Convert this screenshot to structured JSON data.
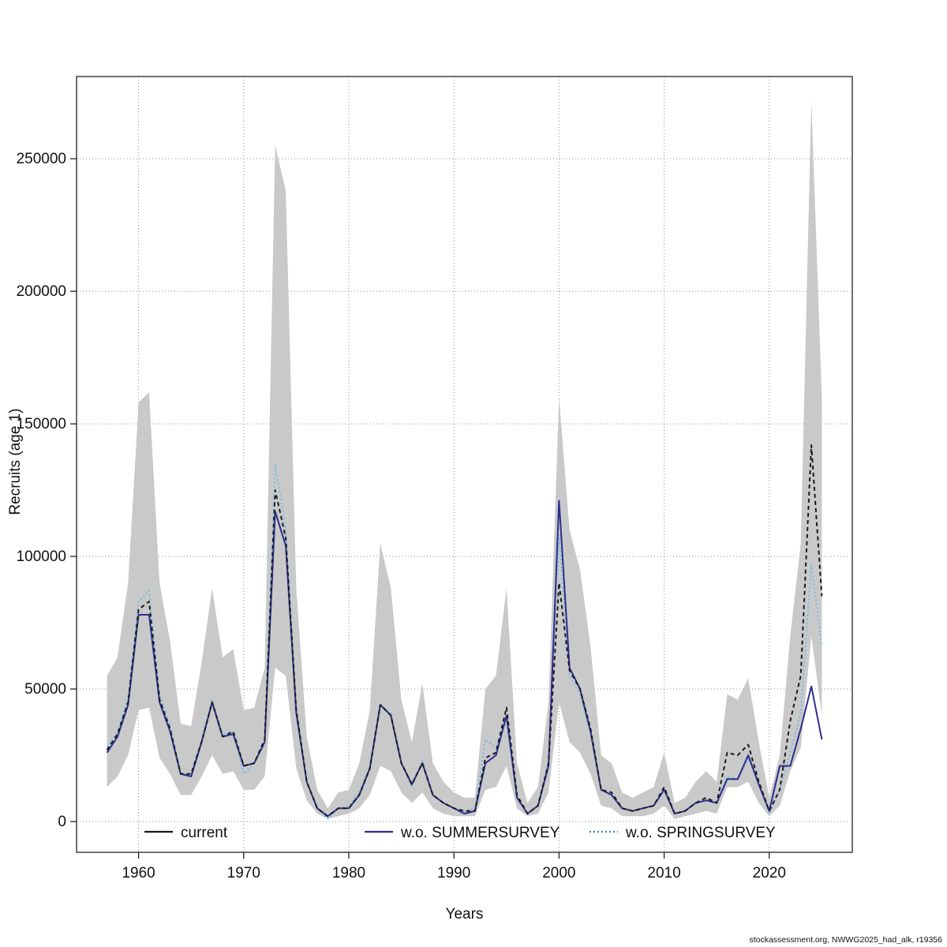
{
  "footer": {
    "text": "stockassessment.org, NWWG2025_had_alk, r19356"
  },
  "chart_data": {
    "type": "line",
    "title": "",
    "xlabel": "Years",
    "ylabel": "Recruits (age 1)",
    "xlim": [
      1954.1,
      2027.9
    ],
    "ylim": [
      -11600,
      281000
    ],
    "xticks": [
      1960,
      1970,
      1980,
      1990,
      2000,
      2010,
      2020
    ],
    "yticks": [
      0,
      50000,
      100000,
      150000,
      200000,
      250000
    ],
    "grid": "dotted",
    "legend_position": "bottom-inside",
    "years": [
      1957,
      1958,
      1959,
      1960,
      1961,
      1962,
      1963,
      1964,
      1965,
      1966,
      1967,
      1968,
      1969,
      1970,
      1971,
      1972,
      1973,
      1974,
      1975,
      1976,
      1977,
      1978,
      1979,
      1980,
      1981,
      1982,
      1983,
      1984,
      1985,
      1986,
      1987,
      1988,
      1989,
      1990,
      1991,
      1992,
      1993,
      1994,
      1995,
      1996,
      1997,
      1998,
      1999,
      2000,
      2001,
      2002,
      2003,
      2004,
      2005,
      2006,
      2007,
      2008,
      2009,
      2010,
      2011,
      2012,
      2013,
      2014,
      2015,
      2016,
      2017,
      2018,
      2019,
      2020,
      2021,
      2022,
      2023,
      2024,
      2025
    ],
    "band": {
      "name": "current confidence interval",
      "color": "#c9c9c9",
      "lower": [
        13000,
        17000,
        25000,
        42000,
        43000,
        24000,
        18000,
        10000,
        10000,
        17000,
        25000,
        18000,
        19000,
        12000,
        12000,
        17000,
        58000,
        55000,
        20000,
        8000,
        3000,
        1000,
        2000,
        3000,
        5000,
        10000,
        21000,
        19000,
        11000,
        7000,
        11000,
        5000,
        3000,
        2000,
        2000,
        2000,
        12000,
        13000,
        21000,
        5000,
        2000,
        3000,
        11000,
        45000,
        30000,
        26000,
        18000,
        6000,
        5000,
        2000,
        2000,
        2000,
        3000,
        6000,
        1000,
        2000,
        3000,
        4000,
        3000,
        13000,
        13000,
        15000,
        7000,
        2000,
        6000,
        19000,
        28000,
        70000,
        40000
      ],
      "upper": [
        55000,
        62000,
        90000,
        158000,
        162000,
        90000,
        68000,
        37000,
        36000,
        60000,
        88000,
        62000,
        65000,
        42000,
        43000,
        58000,
        255000,
        238000,
        88000,
        32000,
        12000,
        5000,
        11000,
        12000,
        22000,
        42000,
        105000,
        88000,
        46000,
        30000,
        52000,
        22000,
        15000,
        11000,
        9000,
        9000,
        50000,
        55000,
        88000,
        22000,
        7000,
        13000,
        45000,
        160000,
        110000,
        95000,
        66000,
        25000,
        22000,
        11000,
        9000,
        11000,
        13000,
        26000,
        7000,
        9000,
        15000,
        19000,
        15000,
        48000,
        46000,
        54000,
        30000,
        9000,
        25000,
        70000,
        105000,
        272000,
        160000
      ]
    },
    "series": [
      {
        "name": "current",
        "color": "#1a1a1a",
        "dash": "5 4",
        "width": 2,
        "values": [
          27000,
          33000,
          45000,
          80000,
          83000,
          46000,
          35000,
          18000,
          18000,
          30000,
          45000,
          32000,
          34000,
          21000,
          22000,
          31000,
          125000,
          107000,
          42000,
          15000,
          5000,
          2000,
          5000,
          5000,
          10000,
          20000,
          44000,
          40000,
          22000,
          14000,
          22000,
          10000,
          7000,
          5000,
          4000,
          4000,
          24000,
          26000,
          43000,
          10000,
          3000,
          6000,
          22000,
          90000,
          57000,
          50000,
          35000,
          12000,
          11000,
          5000,
          4000,
          5000,
          6000,
          13000,
          3000,
          4000,
          7000,
          9000,
          7000,
          26000,
          25000,
          29000,
          15000,
          4000,
          12000,
          38000,
          55000,
          142000,
          85000
        ]
      },
      {
        "name": "w.o. SUMMERSURVEY",
        "color": "#2d2d8f",
        "dash": "",
        "width": 2,
        "values": [
          26000,
          32000,
          44000,
          78000,
          78000,
          45000,
          34000,
          18000,
          17000,
          30000,
          45000,
          32000,
          33000,
          21000,
          22000,
          30000,
          117000,
          104000,
          41000,
          15000,
          5000,
          2000,
          5000,
          5000,
          10000,
          20000,
          44000,
          40000,
          22000,
          14000,
          22000,
          10000,
          7000,
          5000,
          3000,
          4000,
          22000,
          25000,
          40000,
          9000,
          3000,
          6000,
          21000,
          121000,
          58000,
          50000,
          34000,
          12000,
          10000,
          5000,
          4000,
          5000,
          6000,
          12000,
          3000,
          4000,
          7000,
          8000,
          7000,
          16000,
          16000,
          25000,
          14000,
          4000,
          21000,
          21000,
          35000,
          51000,
          31000
        ]
      },
      {
        "name": "w.o. SPRINGSURVEY",
        "color": "#62b8e8",
        "dash": "2 3",
        "width": 1.6,
        "values": [
          28000,
          34000,
          47000,
          83000,
          87000,
          48000,
          36000,
          18000,
          18000,
          31000,
          46000,
          33000,
          34000,
          18000,
          22000,
          29000,
          135000,
          110000,
          43000,
          15000,
          5000,
          1000,
          5000,
          6000,
          11000,
          21000,
          44000,
          41000,
          22000,
          13000,
          23000,
          10000,
          7000,
          5000,
          4000,
          5000,
          31000,
          28000,
          38000,
          9000,
          3000,
          6000,
          23000,
          108000,
          55000,
          48000,
          33000,
          12000,
          10000,
          5000,
          4000,
          5000,
          6000,
          12000,
          3000,
          4000,
          7000,
          8000,
          7000,
          17000,
          16000,
          24000,
          14000,
          3000,
          12000,
          26000,
          41000,
          97000,
          66000
        ]
      }
    ],
    "legend": [
      {
        "label": "current",
        "color": "#1a1a1a",
        "dash": ""
      },
      {
        "label": "w.o. SUMMERSURVEY",
        "color": "#2d2d8f",
        "dash": ""
      },
      {
        "label": "w.o. SPRINGSURVEY",
        "color": "#2e86c1",
        "dash": "2 3"
      }
    ]
  }
}
